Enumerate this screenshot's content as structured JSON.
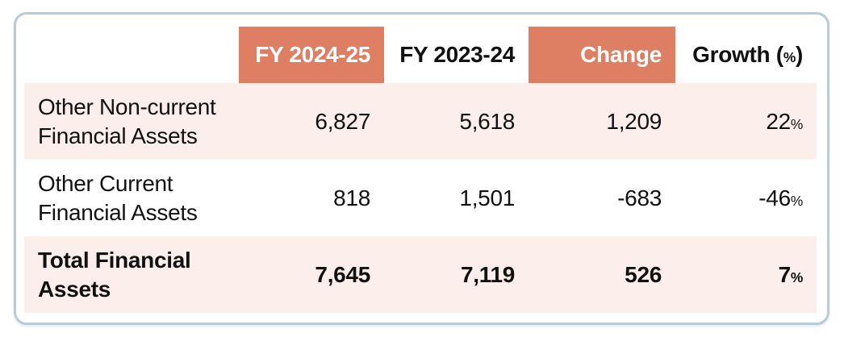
{
  "colors": {
    "header_highlight_bg": "#DE7F64",
    "header_highlight_text": "#FFFFFF",
    "row_shaded_bg": "#FCEEEB",
    "card_border": "#B6CCD6",
    "text": "#111111"
  },
  "header": {
    "label_col": "",
    "fy2425": "FY 2024-25",
    "fy2324": "FY 2023-24",
    "change": "Change",
    "growth_pre": "Growth (",
    "growth_pct": "%",
    "growth_post": ")"
  },
  "rows": [
    {
      "label": "Other Non-current Financial Assets",
      "fy2425": "6,827",
      "fy2324": "5,618",
      "change": "1,209",
      "growth_value": "22",
      "growth_pct": "%"
    },
    {
      "label": "Other Current Financial Assets",
      "fy2425": "818",
      "fy2324": "1,501",
      "change": "-683",
      "growth_value": "-46",
      "growth_pct": "%"
    },
    {
      "label": "Total Financial Assets",
      "fy2425": "7,645",
      "fy2324": "7,119",
      "change": "526",
      "growth_value": "7",
      "growth_pct": "%"
    }
  ]
}
